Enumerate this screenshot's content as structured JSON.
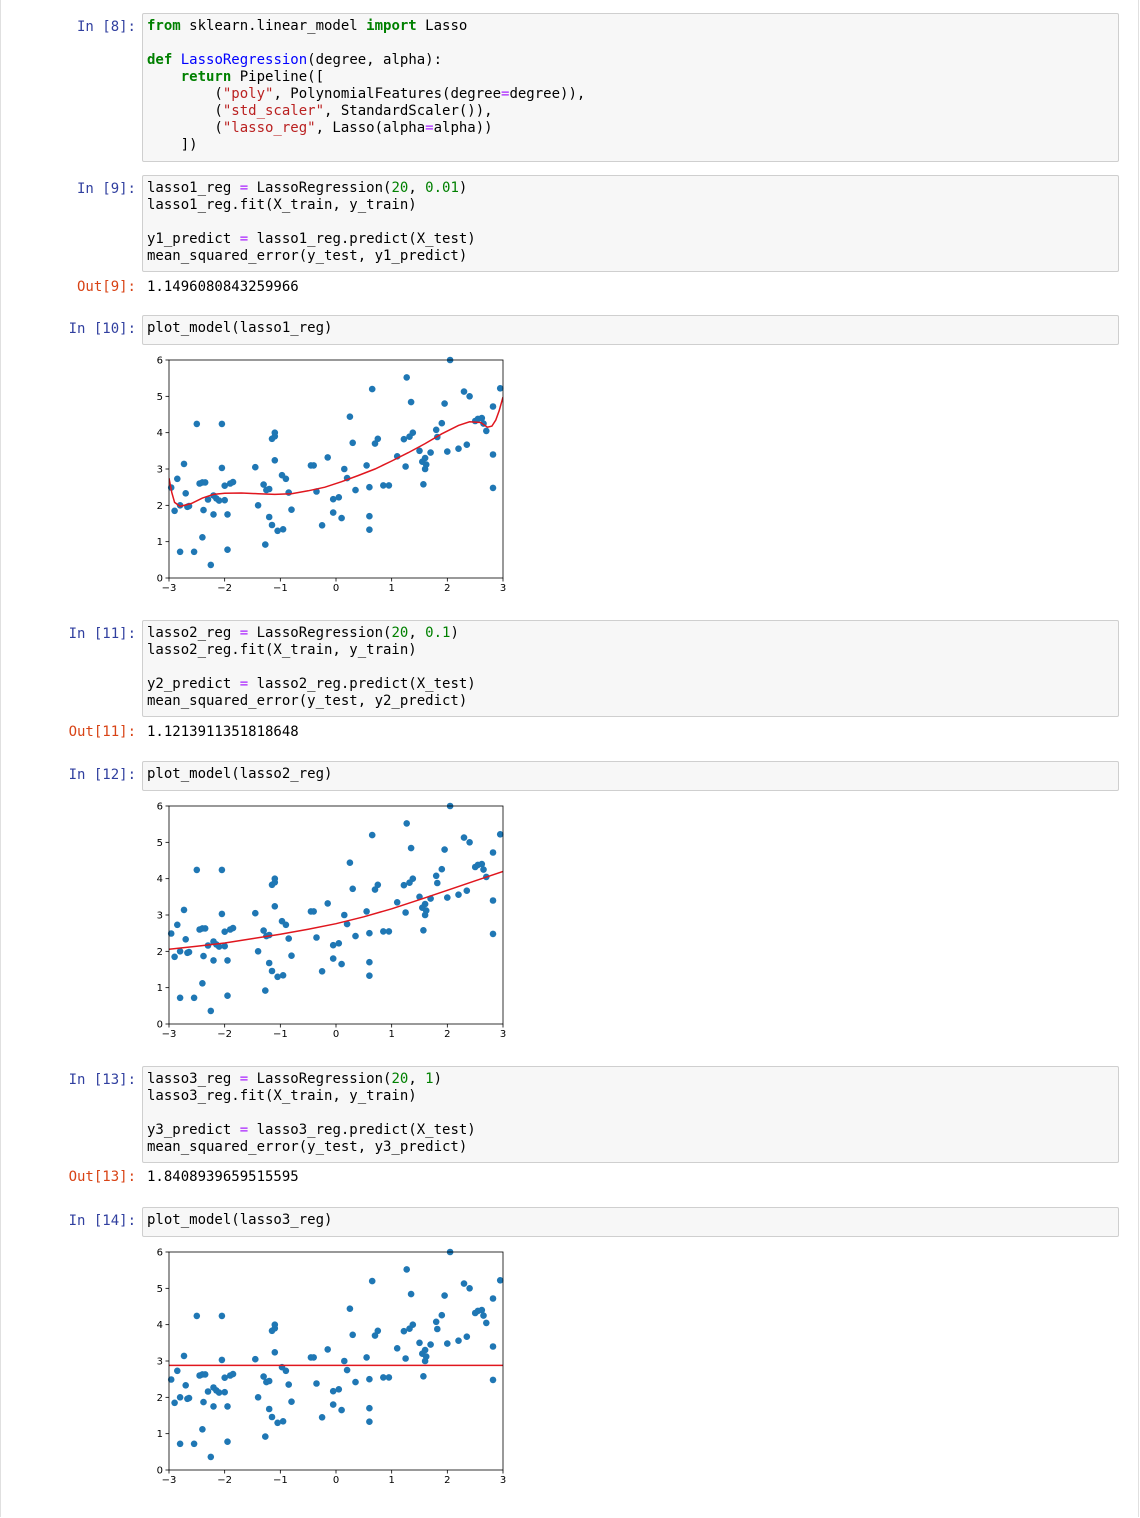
{
  "cells": [
    {
      "prompt": "In [8]:",
      "lines": [
        [
          [
            "kw",
            "from"
          ],
          [
            "t",
            " sklearn.linear_model "
          ],
          [
            "kw",
            "import"
          ],
          [
            "t",
            " Lasso"
          ]
        ],
        [],
        [
          [
            "kw",
            "def"
          ],
          [
            "t",
            " "
          ],
          [
            "fn",
            "LassoRegression"
          ],
          [
            "t",
            "(degree, alpha):"
          ]
        ],
        [
          [
            "t",
            "    "
          ],
          [
            "kw",
            "return"
          ],
          [
            "t",
            " Pipeline(["
          ]
        ],
        [
          [
            "t",
            "        ("
          ],
          [
            "str",
            "\"poly\""
          ],
          [
            "t",
            ", PolynomialFeatures(degree"
          ],
          [
            "op",
            "="
          ],
          [
            "t",
            "degree)),"
          ]
        ],
        [
          [
            "t",
            "        ("
          ],
          [
            "str",
            "\"std_scaler\""
          ],
          [
            "t",
            ", StandardScaler()),"
          ]
        ],
        [
          [
            "t",
            "        ("
          ],
          [
            "str",
            "\"lasso_reg\""
          ],
          [
            "t",
            ", Lasso(alpha"
          ],
          [
            "op",
            "="
          ],
          [
            "t",
            "alpha))"
          ]
        ],
        [
          [
            "t",
            "    ])"
          ]
        ]
      ]
    },
    {
      "prompt": "In [9]:",
      "lines": [
        [
          [
            "t",
            "lasso1_reg "
          ],
          [
            "op",
            "="
          ],
          [
            "t",
            " LassoRegression("
          ],
          [
            "num",
            "20"
          ],
          [
            "t",
            ", "
          ],
          [
            "num",
            "0.01"
          ],
          [
            "t",
            ")"
          ]
        ],
        [
          [
            "t",
            "lasso1_reg.fit(X_train, y_train)"
          ]
        ],
        [],
        [
          [
            "t",
            "y1_predict "
          ],
          [
            "op",
            "="
          ],
          [
            "t",
            " lasso1_reg.predict(X_test)"
          ]
        ],
        [
          [
            "t",
            "mean_squared_error(y_test, y1_predict)"
          ]
        ]
      ],
      "out_prompt": "Out[9]:",
      "output": "1.1496080843259966"
    },
    {
      "prompt": "In [10]:",
      "lines": [
        [
          [
            "t",
            "plot_model(lasso1_reg)"
          ]
        ]
      ]
    },
    {
      "prompt": "In [11]:",
      "lines": [
        [
          [
            "t",
            "lasso2_reg "
          ],
          [
            "op",
            "="
          ],
          [
            "t",
            " LassoRegression("
          ],
          [
            "num",
            "20"
          ],
          [
            "t",
            ", "
          ],
          [
            "num",
            "0.1"
          ],
          [
            "t",
            ")"
          ]
        ],
        [
          [
            "t",
            "lasso2_reg.fit(X_train, y_train)"
          ]
        ],
        [],
        [
          [
            "t",
            "y2_predict "
          ],
          [
            "op",
            "="
          ],
          [
            "t",
            " lasso2_reg.predict(X_test)"
          ]
        ],
        [
          [
            "t",
            "mean_squared_error(y_test, y2_predict)"
          ]
        ]
      ],
      "out_prompt": "Out[11]:",
      "output": "1.1213911351818648"
    },
    {
      "prompt": "In [12]:",
      "lines": [
        [
          [
            "t",
            "plot_model(lasso2_reg)"
          ]
        ]
      ]
    },
    {
      "prompt": "In [13]:",
      "lines": [
        [
          [
            "t",
            "lasso3_reg "
          ],
          [
            "op",
            "="
          ],
          [
            "t",
            " LassoRegression("
          ],
          [
            "num",
            "20"
          ],
          [
            "t",
            ", "
          ],
          [
            "num",
            "1"
          ],
          [
            "t",
            ")"
          ]
        ],
        [
          [
            "t",
            "lasso3_reg.fit(X_train, y_train)"
          ]
        ],
        [],
        [
          [
            "t",
            "y3_predict "
          ],
          [
            "op",
            "="
          ],
          [
            "t",
            " lasso3_reg.predict(X_test)"
          ]
        ],
        [
          [
            "t",
            "mean_squared_error(y_test, y3_predict)"
          ]
        ]
      ],
      "out_prompt": "Out[13]:",
      "output": "1.8408939659515595"
    },
    {
      "prompt": "In [14]:",
      "lines": [
        [
          [
            "t",
            "plot_model(lasso3_reg)"
          ]
        ]
      ]
    }
  ],
  "colors": {
    "scatter": "#1f77b4",
    "fit_line": "#e0161e"
  },
  "chart_data": [
    {
      "type": "scatter",
      "title": "",
      "xlabel": "",
      "ylabel": "",
      "xlim": [
        -3,
        3
      ],
      "ylim": [
        0,
        6
      ],
      "xticks": [
        "−3",
        "−2",
        "−1",
        "0",
        "1",
        "2",
        "3"
      ],
      "yticks": [
        "0",
        "1",
        "2",
        "3",
        "4",
        "5",
        "6"
      ],
      "grid": false,
      "points": [
        [
          -2.96,
          2.49
        ],
        [
          -2.9,
          1.85
        ],
        [
          -2.85,
          2.73
        ],
        [
          -2.8,
          0.72
        ],
        [
          -2.8,
          2.0
        ],
        [
          -2.73,
          3.14
        ],
        [
          -2.7,
          2.33
        ],
        [
          -2.67,
          1.96
        ],
        [
          -2.64,
          1.98
        ],
        [
          -2.55,
          0.72
        ],
        [
          -2.5,
          4.24
        ],
        [
          -2.45,
          2.6
        ],
        [
          -2.4,
          1.12
        ],
        [
          -2.4,
          2.63
        ],
        [
          -2.38,
          1.87
        ],
        [
          -2.35,
          2.63
        ],
        [
          -2.3,
          2.16
        ],
        [
          -2.25,
          0.36
        ],
        [
          -2.2,
          2.27
        ],
        [
          -2.2,
          1.75
        ],
        [
          -2.15,
          2.19
        ],
        [
          -2.1,
          2.13
        ],
        [
          -2.05,
          3.03
        ],
        [
          -2.05,
          4.24
        ],
        [
          -2.0,
          2.14
        ],
        [
          -2.0,
          2.54
        ],
        [
          -1.95,
          0.78
        ],
        [
          -1.95,
          1.75
        ],
        [
          -1.9,
          2.6
        ],
        [
          -1.85,
          2.64
        ],
        [
          -1.45,
          3.05
        ],
        [
          -1.4,
          2.0
        ],
        [
          -1.3,
          2.57
        ],
        [
          -1.27,
          0.92
        ],
        [
          -1.25,
          2.42
        ],
        [
          -1.2,
          1.68
        ],
        [
          -1.2,
          2.45
        ],
        [
          -1.15,
          3.83
        ],
        [
          -1.15,
          1.46
        ],
        [
          -1.1,
          3.9
        ],
        [
          -1.1,
          4.0
        ],
        [
          -1.1,
          3.24
        ],
        [
          -1.05,
          1.3
        ],
        [
          -0.97,
          2.83
        ],
        [
          -0.95,
          1.34
        ],
        [
          -0.9,
          2.73
        ],
        [
          -0.85,
          2.35
        ],
        [
          -0.8,
          1.88
        ],
        [
          -0.45,
          3.1
        ],
        [
          -0.4,
          3.1
        ],
        [
          -0.35,
          2.38
        ],
        [
          -0.25,
          1.45
        ],
        [
          -0.15,
          3.32
        ],
        [
          -0.05,
          2.17
        ],
        [
          -0.05,
          1.8
        ],
        [
          0.05,
          2.22
        ],
        [
          0.1,
          1.65
        ],
        [
          0.15,
          3.0
        ],
        [
          0.2,
          2.75
        ],
        [
          0.25,
          4.44
        ],
        [
          0.3,
          3.72
        ],
        [
          0.35,
          2.42
        ],
        [
          0.55,
          3.1
        ],
        [
          0.6,
          2.5
        ],
        [
          0.6,
          1.7
        ],
        [
          0.6,
          1.33
        ],
        [
          0.65,
          5.2
        ],
        [
          0.7,
          3.7
        ],
        [
          0.75,
          3.83
        ],
        [
          0.85,
          2.55
        ],
        [
          0.95,
          2.55
        ],
        [
          1.1,
          3.35
        ],
        [
          1.22,
          3.82
        ],
        [
          1.25,
          3.07
        ],
        [
          1.27,
          5.52
        ],
        [
          1.32,
          3.89
        ],
        [
          1.35,
          4.84
        ],
        [
          1.38,
          4.0
        ],
        [
          1.5,
          3.5
        ],
        [
          1.55,
          3.2
        ],
        [
          1.57,
          2.58
        ],
        [
          1.6,
          3.3
        ],
        [
          1.6,
          3.0
        ],
        [
          1.62,
          3.12
        ],
        [
          1.7,
          3.45
        ],
        [
          1.8,
          4.08
        ],
        [
          1.82,
          3.88
        ],
        [
          1.9,
          4.26
        ],
        [
          1.95,
          4.8
        ],
        [
          2.0,
          3.48
        ],
        [
          2.05,
          6.0
        ],
        [
          2.2,
          3.56
        ],
        [
          2.3,
          5.13
        ],
        [
          2.35,
          3.67
        ],
        [
          2.4,
          5.0
        ],
        [
          2.5,
          4.32
        ],
        [
          2.55,
          4.38
        ],
        [
          2.62,
          4.4
        ],
        [
          2.65,
          4.25
        ],
        [
          2.7,
          4.05
        ],
        [
          2.82,
          2.48
        ],
        [
          2.82,
          3.4
        ],
        [
          2.82,
          4.72
        ],
        [
          2.95,
          5.22
        ]
      ],
      "curve": [
        [
          -3.0,
          2.75
        ],
        [
          -2.95,
          2.35
        ],
        [
          -2.9,
          2.08
        ],
        [
          -2.8,
          1.97
        ],
        [
          -2.6,
          2.05
        ],
        [
          -2.4,
          2.2
        ],
        [
          -2.2,
          2.3
        ],
        [
          -2.0,
          2.33
        ],
        [
          -1.7,
          2.34
        ],
        [
          -1.4,
          2.32
        ],
        [
          -1.1,
          2.3
        ],
        [
          -0.8,
          2.32
        ],
        [
          -0.5,
          2.4
        ],
        [
          -0.2,
          2.5
        ],
        [
          0.1,
          2.65
        ],
        [
          0.4,
          2.82
        ],
        [
          0.7,
          3.0
        ],
        [
          1.0,
          3.22
        ],
        [
          1.3,
          3.45
        ],
        [
          1.6,
          3.7
        ],
        [
          1.9,
          3.97
        ],
        [
          2.2,
          4.2
        ],
        [
          2.4,
          4.3
        ],
        [
          2.6,
          4.28
        ],
        [
          2.72,
          4.15
        ],
        [
          2.8,
          4.18
        ],
        [
          2.87,
          4.35
        ],
        [
          2.93,
          4.6
        ],
        [
          3.0,
          4.98
        ]
      ]
    },
    {
      "type": "scatter",
      "title": "",
      "xlabel": "",
      "ylabel": "",
      "xlim": [
        -3,
        3
      ],
      "ylim": [
        0,
        6
      ],
      "xticks": [
        "−3",
        "−2",
        "−1",
        "0",
        "1",
        "2",
        "3"
      ],
      "yticks": [
        "0",
        "1",
        "2",
        "3",
        "4",
        "5",
        "6"
      ],
      "grid": false,
      "points": "same_as_first",
      "curve": [
        [
          -3.0,
          2.06
        ],
        [
          -2.5,
          2.14
        ],
        [
          -2.0,
          2.23
        ],
        [
          -1.5,
          2.35
        ],
        [
          -1.0,
          2.47
        ],
        [
          -0.5,
          2.61
        ],
        [
          0.0,
          2.76
        ],
        [
          0.5,
          2.95
        ],
        [
          1.0,
          3.17
        ],
        [
          1.5,
          3.42
        ],
        [
          2.0,
          3.68
        ],
        [
          2.5,
          3.94
        ],
        [
          3.0,
          4.2
        ]
      ]
    },
    {
      "type": "scatter",
      "title": "",
      "xlabel": "",
      "ylabel": "",
      "xlim": [
        -3,
        3
      ],
      "ylim": [
        0,
        6
      ],
      "xticks": [
        "−3",
        "−2",
        "−1",
        "0",
        "1",
        "2",
        "3"
      ],
      "yticks": [
        "0",
        "1",
        "2",
        "3",
        "4",
        "5",
        "6"
      ],
      "grid": false,
      "points": "same_as_first",
      "curve": [
        [
          -3.0,
          2.88
        ],
        [
          3.0,
          2.88
        ]
      ]
    }
  ]
}
